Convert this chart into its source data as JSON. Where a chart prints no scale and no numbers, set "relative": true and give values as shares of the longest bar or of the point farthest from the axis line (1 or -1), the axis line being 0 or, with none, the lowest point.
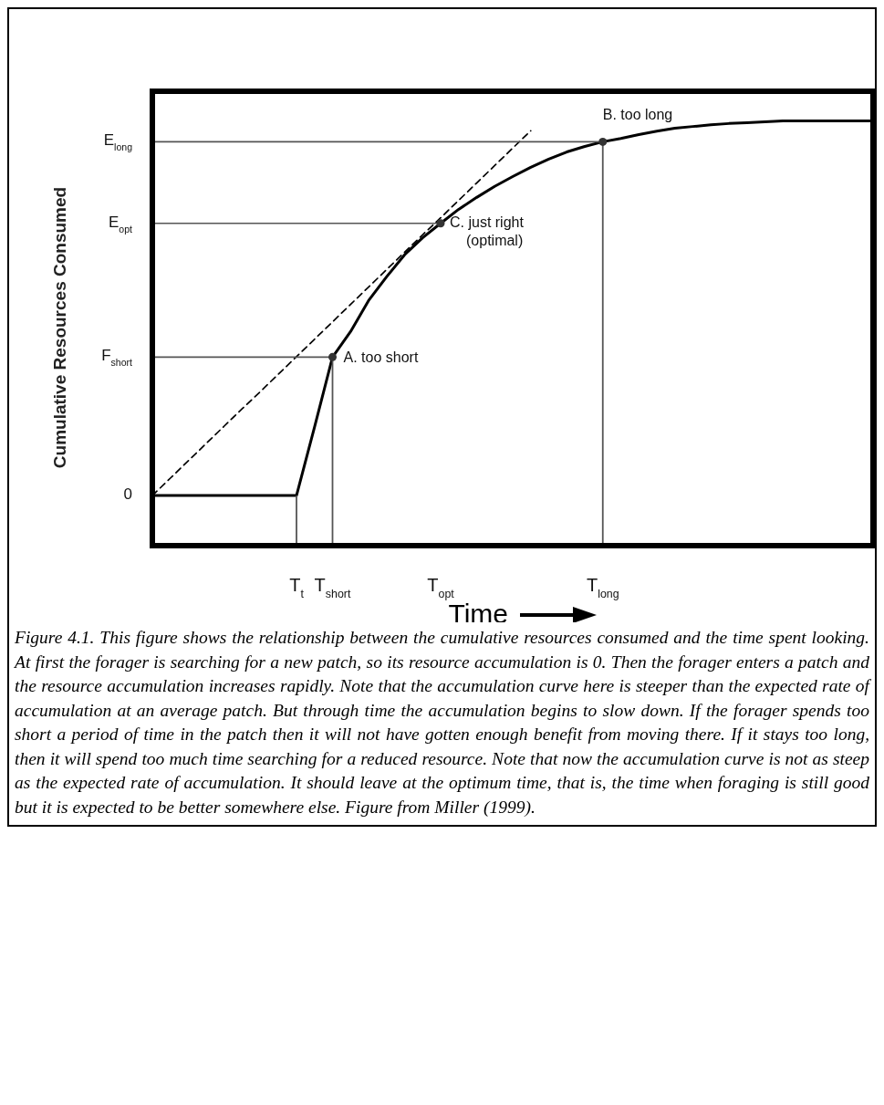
{
  "chart_data": {
    "type": "line",
    "relative": true,
    "xlabel": "Time",
    "ylabel": "Cumulative Resources Consumed",
    "categories": [
      null,
      null,
      null,
      null,
      null,
      null,
      null,
      null,
      "T$_{t}$",
      null,
      "T$_{short}$",
      null,
      null,
      null,
      null,
      null,
      "T$_{opt}$",
      null,
      null,
      null,
      null,
      null,
      null,
      null,
      null,
      "T$_{long}$",
      null,
      null,
      null,
      null,
      null,
      null,
      null,
      null,
      null,
      null,
      null,
      null,
      null,
      null,
      null
    ],
    "grid": false,
    "series": [
      {
        "type": "line",
        "color": "#000000",
        "line_style": "solid",
        "values": [
          0.118,
          0.118,
          0.118,
          0.118,
          0.118,
          0.118,
          0.118,
          0.118,
          0.118,
          0.279,
          0.444,
          0.504,
          0.577,
          0.633,
          0.685,
          0.725,
          0.759,
          0.792,
          0.82,
          0.846,
          0.869,
          0.891,
          0.91,
          0.927,
          0.94,
          0.951,
          0.959,
          0.968,
          0.976,
          0.983,
          0.987,
          0.991,
          0.994,
          0.996,
          0.998,
          1,
          1,
          1,
          1,
          1,
          1
        ]
      },
      {
        "type": "line",
        "color": "#000000",
        "line_style": "dashed",
        "values": [
          0.118,
          0.159,
          0.2,
          0.241,
          0.282,
          0.323,
          0.363,
          0.404,
          0.445,
          0.486,
          0.527,
          0.568,
          0.609,
          0.65,
          0.691,
          0.732,
          0.772,
          0.813,
          0.854,
          0.895,
          0.936,
          0.977,
          null,
          null,
          null,
          null,
          null,
          null,
          null,
          null,
          null,
          null,
          null,
          null,
          null,
          null,
          null,
          null,
          null,
          null,
          null
        ]
      },
      {
        "type": "line",
        "color": "#555555",
        "line_style": "solid",
        "values": [
          0.444,
          0.444,
          0.444,
          0.444,
          0.444,
          0.444,
          0.444,
          0.444,
          0.444,
          0.444,
          0.444,
          null,
          null,
          null,
          null,
          null,
          null,
          null,
          null,
          null,
          null,
          null,
          null,
          null,
          null,
          null,
          null,
          null,
          null,
          null,
          null,
          null,
          null,
          null,
          null,
          null,
          null,
          null,
          null,
          null,
          null
        ]
      },
      {
        "type": "line",
        "color": "#555555",
        "line_style": "solid",
        "values": [
          0.759,
          0.759,
          0.759,
          0.759,
          0.759,
          0.759,
          0.759,
          0.759,
          0.759,
          0.759,
          0.759,
          0.759,
          0.759,
          0.759,
          0.759,
          0.759,
          0.759,
          null,
          null,
          null,
          null,
          null,
          null,
          null,
          null,
          null,
          null,
          null,
          null,
          null,
          null,
          null,
          null,
          null,
          null,
          null,
          null,
          null,
          null,
          null,
          null
        ]
      },
      {
        "type": "line",
        "color": "#555555",
        "line_style": "solid",
        "values": [
          0.951,
          0.951,
          0.951,
          0.951,
          0.951,
          0.951,
          0.951,
          0.951,
          0.951,
          0.951,
          0.951,
          0.951,
          0.951,
          0.951,
          0.951,
          0.951,
          0.951,
          0.951,
          0.951,
          0.951,
          0.951,
          0.951,
          0.951,
          0.951,
          0.951,
          0.951,
          null,
          null,
          null,
          null,
          null,
          null,
          null,
          null,
          null,
          null,
          null,
          null,
          null,
          null,
          null
        ]
      },
      {
        "type": "bar",
        "color": "#555555",
        "values": [
          null,
          null,
          null,
          null,
          null,
          null,
          null,
          null,
          0.118,
          null,
          0.444,
          null,
          null,
          null,
          null,
          null,
          null,
          null,
          null,
          null,
          null,
          null,
          null,
          null,
          null,
          0.951,
          null,
          null,
          null,
          null,
          null,
          null,
          null,
          null,
          null,
          null,
          null,
          null,
          null,
          null,
          null
        ]
      },
      {
        "type": "scatter",
        "color": "#333333",
        "marker": "circle",
        "values": [
          null,
          null,
          null,
          null,
          null,
          null,
          null,
          null,
          null,
          null,
          0.444,
          null,
          null,
          null,
          null,
          null,
          0.759,
          null,
          null,
          null,
          null,
          null,
          null,
          null,
          null,
          0.951,
          null,
          null,
          null,
          null,
          null,
          null,
          null,
          null,
          null,
          null,
          null,
          null,
          null,
          null,
          null
        ]
      }
    ],
    "annotations": [
      "0",
      "F$_{short}$",
      "E$_{opt}$",
      "E$_{long}$",
      "A.  too short",
      "C.  just right\n(optimal)",
      "B.  too long",
      "Figure 4.1.  This figure shows the relationship between the cumulative resources consumed and the time spent looking.  At first the forager is searching for a new patch, so its resource accumulation is 0.  Then the forager enters a patch and the resource accumulation increases rapidly.  Note that the accumulation curve here is steeper than the expected rate of accumulation at an average patch.  But through time the accumulation begins to slow down.  If the forager spends too short a period of time in the patch then it will not have gotten enough benefit from moving there.  If it stays too long, then it will spend too much time searching for a reduced resource.  Note that now the accumulation curve is not as steep as the expected rate of accumulation.  It should leave at the optimum time, that is, the time when foraging is still good but it is expected to be better somewhere else.  Figure from Miller (1999)."
    ]
  }
}
